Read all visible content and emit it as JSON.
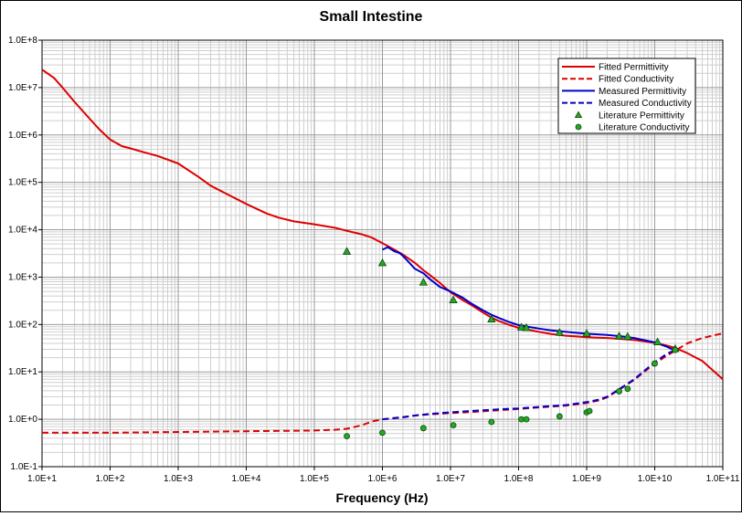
{
  "chart_data": {
    "type": "line",
    "title": "Small Intestine",
    "xlabel": "Frequency (Hz)",
    "ylabel": "",
    "x_scale": "log",
    "y_scale": "log",
    "xlim": [
      10,
      100000000000
    ],
    "ylim": [
      0.1,
      100000000
    ],
    "grid": true,
    "legend_position": "top-right",
    "x_tick_labels": [
      "1.0E+1",
      "1.0E+2",
      "1.0E+3",
      "1.0E+4",
      "1.0E+5",
      "1.0E+6",
      "1.0E+7",
      "1.0E+8",
      "1.0E+9",
      "1.0E+10",
      "1.0E+11"
    ],
    "y_tick_labels": [
      "1.0E-1",
      "1.0E+0",
      "1.0E+1",
      "1.0E+2",
      "1.0E+3",
      "1.0E+4",
      "1.0E+5",
      "1.0E+6",
      "1.0E+7",
      "1.0E+8"
    ],
    "series": [
      {
        "name": "Fitted Permittivity",
        "style": "solid",
        "color": "#dd0000",
        "x": [
          10,
          15,
          20,
          30,
          50,
          70,
          100,
          150,
          200,
          300,
          500,
          1000,
          2000,
          3000,
          5000,
          10000,
          20000,
          30000,
          50000,
          100000,
          200000,
          300000,
          500000,
          700000,
          1000000,
          1500000,
          2000000,
          3000000,
          4000000,
          5000000,
          7000000,
          10000000,
          15000000,
          20000000,
          30000000,
          40000000,
          50000000,
          70000000,
          100000000,
          200000000,
          300000000,
          500000000,
          1000000000,
          2000000000,
          3000000000,
          5000000000,
          10000000000,
          15000000000,
          20000000000,
          30000000000,
          50000000000,
          100000000000
        ],
        "y": [
          24000000,
          16000000,
          10000000,
          5000000,
          2200000,
          1300000,
          800000,
          580000,
          520000,
          440000,
          360000,
          250000,
          130000,
          85000,
          58000,
          35000,
          22000,
          18000,
          15000,
          13000,
          11000,
          9500,
          8000,
          6800,
          5200,
          3800,
          3000,
          2000,
          1400,
          1100,
          750,
          480,
          330,
          260,
          180,
          140,
          120,
          100,
          85,
          70,
          63,
          58,
          54,
          52,
          50,
          47,
          41,
          36,
          32,
          25,
          17,
          7
        ]
      },
      {
        "name": "Fitted Conductivity",
        "style": "dashed",
        "color": "#dd0000",
        "x": [
          10,
          100,
          1000,
          10000,
          100000,
          200000,
          300000,
          500000,
          700000,
          1000000,
          2000000,
          3000000,
          5000000,
          10000000,
          20000000,
          50000000,
          100000000,
          200000000,
          300000000,
          500000000,
          1000000000,
          1500000000,
          2000000000,
          3000000000,
          5000000000,
          7000000000,
          10000000000,
          15000000000,
          20000000000,
          30000000000,
          50000000000,
          100000000000
        ],
        "y": [
          0.52,
          0.52,
          0.54,
          0.56,
          0.58,
          0.6,
          0.63,
          0.75,
          0.9,
          1.0,
          1.12,
          1.2,
          1.27,
          1.35,
          1.42,
          1.55,
          1.65,
          1.78,
          1.85,
          1.95,
          2.2,
          2.5,
          2.9,
          4.2,
          6.8,
          10,
          15,
          22,
          28,
          40,
          52,
          65
        ]
      },
      {
        "name": "Measured Permittivity",
        "style": "solid",
        "color": "#0000cc",
        "x": [
          1000000,
          1200000,
          1500000,
          1800000,
          2000000,
          2500000,
          3000000,
          4000000,
          5000000,
          7000000,
          10000000,
          15000000,
          20000000,
          30000000,
          40000000,
          50000000,
          70000000,
          100000000,
          200000000,
          300000000,
          500000000,
          1000000000,
          2000000000,
          3000000000,
          5000000000,
          10000000000,
          15000000000,
          20000000000
        ],
        "y": [
          3800,
          4300,
          3500,
          3200,
          2800,
          2000,
          1500,
          1200,
          900,
          620,
          500,
          370,
          280,
          200,
          160,
          140,
          115,
          97,
          82,
          75,
          70,
          64,
          60,
          57,
          52,
          42,
          34,
          28
        ]
      },
      {
        "name": "Measured Conductivity",
        "style": "dashed",
        "color": "#0000cc",
        "x": [
          1000000,
          2000000,
          3000000,
          5000000,
          10000000,
          20000000,
          50000000,
          100000000,
          200000000,
          300000000,
          500000000,
          1000000000,
          1500000000,
          2000000000,
          3000000000,
          5000000000,
          7000000000,
          10000000000,
          15000000000,
          20000000000
        ],
        "y": [
          1.0,
          1.1,
          1.2,
          1.3,
          1.4,
          1.5,
          1.62,
          1.7,
          1.82,
          1.9,
          2.0,
          2.3,
          2.6,
          3.0,
          4.3,
          7.0,
          10.5,
          16,
          24,
          29
        ]
      },
      {
        "name": "Literature Permittivity",
        "style": "triangle",
        "color": "#22aa22",
        "x": [
          300000,
          1000000,
          4000000,
          11000000,
          40000000,
          110000000,
          130000000,
          400000000,
          1000000000,
          3000000000,
          4000000000,
          11000000000,
          20000000000
        ],
        "y": [
          3500,
          2000,
          780,
          330,
          130,
          88,
          86,
          68,
          65,
          57,
          56,
          43,
          31
        ]
      },
      {
        "name": "Literature Conductivity",
        "style": "circle",
        "color": "#22aa22",
        "x": [
          300000,
          1000000,
          4000000,
          11000000,
          40000000,
          110000000,
          130000000,
          400000000,
          1000000000,
          1100000000,
          3000000000,
          4000000000,
          10000000000,
          20000000000
        ],
        "y": [
          0.44,
          0.52,
          0.65,
          0.75,
          0.88,
          1.0,
          1.0,
          1.15,
          1.4,
          1.5,
          3.9,
          4.4,
          15,
          29
        ]
      }
    ]
  }
}
